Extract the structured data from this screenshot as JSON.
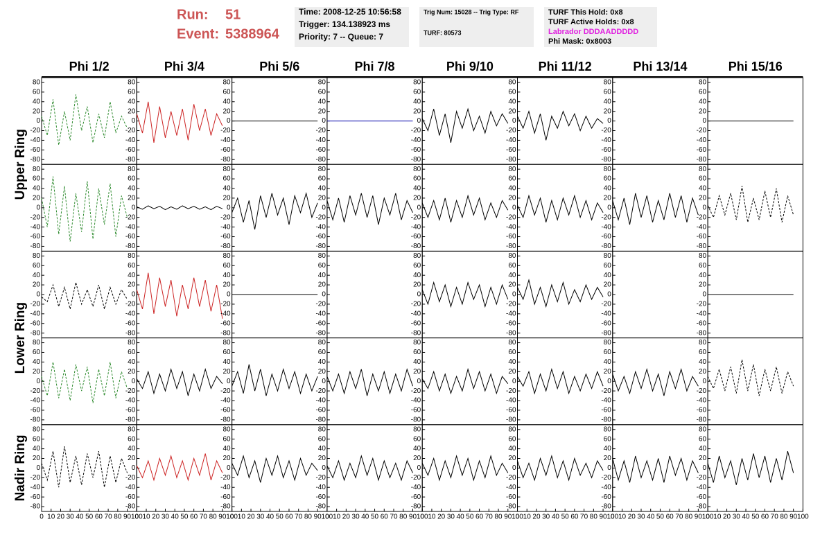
{
  "header": {
    "run_label": "Run:",
    "run": "51",
    "event_label": "Event:",
    "event": "5388964"
  },
  "info_boxes": [
    {
      "lines": [
        {
          "text": "Time: 2008-12-25 10:56:58",
          "color": "#000000"
        },
        {
          "text": "Trigger: 134.138923 ms",
          "color": "#000000"
        },
        {
          "text": "Priority: 7 -- Queue: 7",
          "color": "#000000"
        }
      ]
    },
    {
      "lines": [
        {
          "text": "Trig Num: 15028 -- Trig Type: RF",
          "color": "#000000"
        },
        {
          "text": "TURF: 80573",
          "color": "#000000"
        }
      ]
    },
    {
      "lines": [
        {
          "text": "TURF This Hold: 0x8",
          "color": "#000000"
        },
        {
          "text": "TURF Active Holds: 0x8",
          "color": "#000000"
        },
        {
          "text": "Labrador DDDAADDDDD",
          "color": "#e020e0"
        },
        {
          "text": "Phi Mask: 0x8003",
          "color": "#000000"
        }
      ]
    }
  ],
  "columns": [
    "Phi 1/2",
    "Phi 3/4",
    "Phi 5/6",
    "Phi 7/8",
    "Phi 9/10",
    "Phi 11/12",
    "Phi 13/14",
    "Phi 15/16"
  ],
  "ring_labels": [
    "Upper Ring",
    "Lower Ring",
    "Nadir Ring"
  ],
  "ylim": [
    -90,
    90
  ],
  "yticks": [
    -80,
    -60,
    -40,
    -20,
    0,
    20,
    40,
    60,
    80
  ],
  "xlim": [
    0,
    100
  ],
  "xticks": [
    0,
    10,
    20,
    30,
    40,
    50,
    60,
    70,
    80,
    90,
    100
  ],
  "x": [
    0,
    6,
    12,
    18,
    24,
    30,
    36,
    42,
    48,
    54,
    60,
    66,
    72,
    78,
    84,
    90
  ],
  "panels": [
    [
      {
        "color": "#2e8b2e",
        "dash": true,
        "values": [
          10,
          -30,
          45,
          -50,
          20,
          -40,
          55,
          -20,
          30,
          -45,
          15,
          -35,
          40,
          -25,
          10,
          -15
        ]
      },
      {
        "color": "#cc2222",
        "dash": false,
        "values": [
          15,
          -25,
          40,
          -45,
          30,
          -35,
          20,
          -30,
          25,
          -40,
          35,
          -20,
          25,
          -30,
          15,
          -10
        ]
      },
      {
        "color": "#000000",
        "dash": false,
        "values": [
          0,
          0,
          0,
          0,
          0,
          0,
          0,
          0,
          0,
          0,
          0,
          0,
          0,
          0,
          0,
          0
        ]
      },
      {
        "color": "#0000aa",
        "dash": false,
        "values": [
          0,
          0,
          0,
          0,
          0,
          0,
          0,
          0,
          0,
          0,
          0,
          0,
          0,
          0,
          0,
          0
        ]
      },
      {
        "color": "#000000",
        "dash": false,
        "values": [
          5,
          -20,
          25,
          -30,
          15,
          -45,
          20,
          -15,
          25,
          -20,
          10,
          -25,
          20,
          -10,
          15,
          -5
        ]
      },
      {
        "color": "#000000",
        "dash": false,
        "values": [
          10,
          -15,
          20,
          -25,
          15,
          -40,
          10,
          -15,
          20,
          -10,
          15,
          -20,
          10,
          -15,
          5,
          -5
        ]
      },
      null,
      {
        "color": "#000000",
        "dash": false,
        "values": [
          0,
          0,
          0,
          0,
          0,
          0,
          0,
          0,
          0,
          0,
          0,
          0,
          0,
          0,
          0,
          0
        ]
      }
    ],
    [
      {
        "color": "#2e8b2e",
        "dash": true,
        "values": [
          20,
          -40,
          65,
          -55,
          45,
          -70,
          30,
          -50,
          55,
          -65,
          40,
          -35,
          50,
          -60,
          25,
          -20
        ]
      },
      {
        "color": "#000000",
        "dash": false,
        "values": [
          2,
          -3,
          4,
          -2,
          3,
          -4,
          2,
          -3,
          4,
          -2,
          3,
          -3,
          2,
          -4,
          3,
          -2
        ]
      },
      {
        "color": "#000000",
        "dash": false,
        "values": [
          -10,
          20,
          -30,
          15,
          -45,
          25,
          -20,
          30,
          -15,
          20,
          -35,
          25,
          -10,
          30,
          -20,
          10
        ]
      },
      {
        "color": "#000000",
        "dash": false,
        "values": [
          15,
          -25,
          20,
          -30,
          25,
          -15,
          30,
          -20,
          25,
          -35,
          20,
          -15,
          30,
          -25,
          15,
          -10
        ]
      },
      {
        "color": "#000000",
        "dash": false,
        "values": [
          10,
          -20,
          15,
          -25,
          20,
          -30,
          15,
          -20,
          25,
          -15,
          20,
          -25,
          10,
          -20,
          15,
          -5
        ]
      },
      {
        "color": "#000000",
        "dash": false,
        "values": [
          5,
          -20,
          25,
          -15,
          20,
          -30,
          15,
          -25,
          20,
          -15,
          25,
          -20,
          15,
          -25,
          10,
          -10
        ]
      },
      {
        "color": "#000000",
        "dash": false,
        "values": [
          15,
          -25,
          20,
          -35,
          30,
          -20,
          25,
          -30,
          15,
          -25,
          30,
          -20,
          25,
          -30,
          20,
          -15
        ]
      },
      {
        "color": "#000000",
        "dash": true,
        "values": [
          5,
          -20,
          25,
          -15,
          30,
          -25,
          45,
          -30,
          20,
          -25,
          35,
          -20,
          40,
          -30,
          25,
          -15
        ]
      }
    ],
    [
      {
        "color": "#000000",
        "dash": true,
        "values": [
          -5,
          -15,
          20,
          -25,
          15,
          -30,
          25,
          -20,
          10,
          -25,
          20,
          -30,
          15,
          -20,
          10,
          -10
        ]
      },
      {
        "color": "#cc2222",
        "dash": false,
        "values": [
          10,
          -30,
          45,
          -40,
          35,
          -25,
          30,
          -45,
          20,
          -30,
          35,
          -25,
          30,
          -35,
          20,
          -50
        ]
      },
      {
        "color": "#000000",
        "dash": false,
        "values": [
          0,
          0,
          0,
          0,
          0,
          0,
          0,
          0,
          0,
          0,
          0,
          0,
          0,
          0,
          0,
          0
        ]
      },
      null,
      {
        "color": "#000000",
        "dash": false,
        "values": [
          10,
          -20,
          25,
          -15,
          20,
          -25,
          15,
          -20,
          25,
          -10,
          20,
          -25,
          15,
          -20,
          20,
          -10
        ]
      },
      {
        "color": "#000000",
        "dash": false,
        "values": [
          15,
          -10,
          30,
          -20,
          15,
          -25,
          20,
          -15,
          25,
          -20,
          10,
          -15,
          20,
          -10,
          15,
          -5
        ]
      },
      null,
      {
        "color": "#000000",
        "dash": false,
        "values": [
          0,
          0,
          0,
          0,
          0,
          0,
          0,
          0,
          0,
          0,
          0,
          0,
          0,
          0,
          0,
          0
        ]
      }
    ],
    [
      {
        "color": "#2e8b2e",
        "dash": true,
        "values": [
          10,
          -30,
          40,
          -35,
          25,
          -40,
          35,
          -20,
          30,
          -45,
          25,
          -30,
          40,
          -35,
          20,
          -15
        ]
      },
      {
        "color": "#000000",
        "dash": false,
        "values": [
          5,
          -15,
          20,
          -25,
          15,
          -20,
          25,
          -15,
          20,
          -30,
          15,
          -20,
          25,
          -15,
          10,
          -5
        ]
      },
      {
        "color": "#000000",
        "dash": false,
        "values": [
          -10,
          20,
          -25,
          35,
          -20,
          25,
          -30,
          15,
          -20,
          25,
          -15,
          20,
          -25,
          15,
          -20,
          10
        ]
      },
      {
        "color": "#000000",
        "dash": false,
        "values": [
          10,
          -20,
          15,
          -25,
          20,
          -15,
          25,
          -30,
          15,
          -20,
          20,
          -25,
          15,
          -20,
          25,
          -10
        ]
      },
      {
        "color": "#000000",
        "dash": false,
        "values": [
          5,
          -15,
          20,
          -20,
          15,
          -25,
          10,
          -20,
          25,
          -15,
          20,
          -20,
          15,
          -25,
          10,
          -5
        ]
      },
      {
        "color": "#000000",
        "dash": false,
        "values": [
          10,
          -10,
          20,
          -25,
          15,
          -20,
          25,
          -15,
          20,
          -25,
          10,
          -20,
          15,
          -15,
          20,
          -10
        ]
      },
      {
        "color": "#000000",
        "dash": false,
        "values": [
          15,
          -20,
          10,
          -25,
          20,
          -15,
          25,
          -20,
          15,
          -30,
          20,
          -15,
          25,
          -20,
          10,
          -10
        ]
      },
      {
        "color": "#000000",
        "dash": true,
        "values": [
          10,
          -15,
          25,
          -20,
          30,
          -25,
          45,
          -20,
          35,
          -30,
          25,
          -20,
          30,
          -25,
          20,
          -10
        ]
      }
    ],
    [
      {
        "color": "#000000",
        "dash": true,
        "values": [
          10,
          -25,
          35,
          -40,
          45,
          -30,
          25,
          -35,
          30,
          -20,
          35,
          -40,
          25,
          -30,
          20,
          -10
        ]
      },
      {
        "color": "#cc2222",
        "dash": false,
        "values": [
          5,
          -20,
          15,
          -25,
          20,
          -15,
          25,
          -20,
          15,
          -25,
          20,
          -15,
          30,
          -25,
          15,
          -10
        ]
      },
      {
        "color": "#000000",
        "dash": false,
        "values": [
          10,
          -15,
          25,
          -20,
          15,
          -30,
          20,
          -15,
          25,
          -20,
          15,
          -25,
          20,
          -15,
          10,
          -5
        ]
      },
      {
        "color": "#000000",
        "dash": false,
        "values": [
          5,
          -20,
          15,
          -25,
          10,
          -20,
          25,
          -15,
          20,
          -25,
          15,
          -20,
          10,
          -25,
          15,
          -10
        ]
      },
      {
        "color": "#000000",
        "dash": false,
        "values": [
          10,
          -15,
          20,
          -25,
          15,
          -20,
          25,
          -15,
          20,
          -25,
          15,
          -20,
          25,
          -15,
          10,
          -10
        ]
      },
      {
        "color": "#000000",
        "dash": false,
        "values": [
          15,
          -20,
          10,
          -25,
          20,
          -15,
          25,
          -20,
          15,
          -25,
          20,
          -15,
          10,
          -20,
          15,
          -5
        ]
      },
      {
        "color": "#000000",
        "dash": false,
        "values": [
          20,
          -25,
          15,
          -30,
          25,
          -20,
          15,
          -25,
          20,
          -30,
          25,
          -15,
          20,
          -25,
          15,
          -10
        ]
      },
      {
        "color": "#000000",
        "dash": false,
        "values": [
          10,
          -30,
          25,
          -20,
          15,
          -35,
          20,
          -25,
          30,
          -20,
          25,
          -30,
          20,
          -25,
          35,
          -10
        ]
      }
    ]
  ]
}
